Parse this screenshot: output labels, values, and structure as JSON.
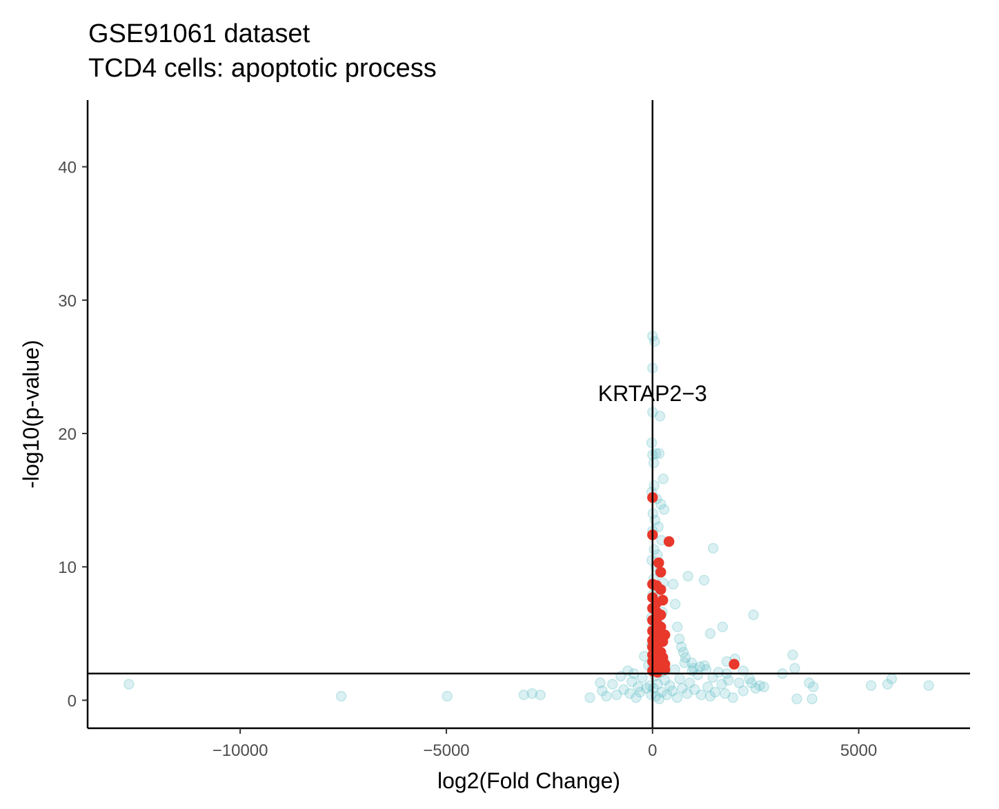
{
  "chart_data": {
    "type": "scatter",
    "title": "GSE91061 dataset",
    "subtitle": "TCD4 cells: apoptotic process",
    "xlabel": "log2(Fold Change)",
    "ylabel": "-log10(p-value)",
    "xlim": [
      -13700,
      7700
    ],
    "ylim": [
      -2.1,
      45
    ],
    "x_ticks": [
      -10000,
      -5000,
      0,
      5000
    ],
    "x_tick_labels": [
      "−10000",
      "−5000",
      "0",
      "5000"
    ],
    "y_ticks": [
      0,
      10,
      20,
      30,
      40
    ],
    "y_tick_labels": [
      "0",
      "10",
      "20",
      "30",
      "40"
    ],
    "reference_lines": {
      "vertical_x": 0,
      "horizontal_y": 2
    },
    "grid": false,
    "legend": "none",
    "colors": {
      "background_genes": "#5bbcc4",
      "highlighted_genes": "#e8382b",
      "axis": "#000000"
    },
    "annotations": [
      {
        "text": "KRTAP2−3",
        "x": 0,
        "y": 23
      }
    ],
    "series": [
      {
        "role": "background",
        "points": [
          [
            -12700,
            1.2
          ],
          [
            -7550,
            0.3
          ],
          [
            -4980,
            0.3
          ],
          [
            -3120,
            0.4
          ],
          [
            -2920,
            0.5
          ],
          [
            -2720,
            0.4
          ],
          [
            -1520,
            0.2
          ],
          [
            -1270,
            1.3
          ],
          [
            -1220,
            0.7
          ],
          [
            -1120,
            0.3
          ],
          [
            -970,
            1.2
          ],
          [
            -870,
            0.4
          ],
          [
            -770,
            1.8
          ],
          [
            -700,
            0.8
          ],
          [
            -600,
            2.2
          ],
          [
            -550,
            0.5
          ],
          [
            -500,
            1.4
          ],
          [
            -450,
            2.0
          ],
          [
            -400,
            0.2
          ],
          [
            -350,
            1.0
          ],
          [
            -300,
            0.6
          ],
          [
            -250,
            1.7
          ],
          [
            -200,
            3.3
          ],
          [
            -150,
            0.9
          ],
          [
            -100,
            2.6
          ],
          [
            -60,
            1.1
          ],
          [
            -30,
            0.4
          ],
          [
            -10,
            4.0
          ],
          [
            0,
            27.3
          ],
          [
            50,
            26.9
          ],
          [
            0,
            24.9
          ],
          [
            0,
            21.6
          ],
          [
            180,
            21.3
          ],
          [
            -20,
            19.3
          ],
          [
            0,
            18.4
          ],
          [
            80,
            18.5
          ],
          [
            160,
            18.5
          ],
          [
            30,
            17.8
          ],
          [
            260,
            16.6
          ],
          [
            40,
            16.1
          ],
          [
            -20,
            15.6
          ],
          [
            100,
            15.1
          ],
          [
            200,
            14.7
          ],
          [
            10,
            14.0
          ],
          [
            280,
            14.3
          ],
          [
            60,
            13.5
          ],
          [
            140,
            13.0
          ],
          [
            0,
            12.7
          ],
          [
            220,
            12.0
          ],
          [
            40,
            11.3
          ],
          [
            120,
            10.9
          ],
          [
            -20,
            10.5
          ],
          [
            80,
            10.0
          ],
          [
            180,
            9.6
          ],
          [
            30,
            9.1
          ],
          [
            260,
            8.8
          ],
          [
            100,
            8.4
          ],
          [
            0,
            7.9
          ],
          [
            160,
            7.5
          ],
          [
            50,
            7.0
          ],
          [
            240,
            6.6
          ],
          [
            -30,
            6.2
          ],
          [
            130,
            5.8
          ],
          [
            20,
            5.4
          ],
          [
            210,
            5.0
          ],
          [
            70,
            4.6
          ],
          [
            -20,
            4.2
          ],
          [
            150,
            3.8
          ],
          [
            40,
            3.4
          ],
          [
            260,
            3.1
          ],
          [
            90,
            2.7
          ],
          [
            0,
            2.4
          ],
          [
            190,
            2.1
          ],
          [
            60,
            1.8
          ],
          [
            300,
            1.5
          ],
          [
            120,
            1.2
          ],
          [
            20,
            0.9
          ],
          [
            220,
            0.6
          ],
          [
            80,
            0.3
          ],
          [
            160,
            0.1
          ],
          [
            350,
            0.4
          ],
          [
            420,
            1.1
          ],
          [
            480,
            0.7
          ],
          [
            540,
            2.3
          ],
          [
            600,
            0.2
          ],
          [
            660,
            1.6
          ],
          [
            720,
            0.9
          ],
          [
            780,
            2.8
          ],
          [
            840,
            0.5
          ],
          [
            900,
            1.3
          ],
          [
            960,
            2.2
          ],
          [
            1020,
            0.8
          ],
          [
            1100,
            1.9
          ],
          [
            1180,
            0.4
          ],
          [
            1260,
            2.6
          ],
          [
            1340,
            1.0
          ],
          [
            1400,
            0.3
          ],
          [
            1460,
            1.7
          ],
          [
            1520,
            0.6
          ],
          [
            1600,
            2.1
          ],
          [
            1680,
            1.2
          ],
          [
            1760,
            0.5
          ],
          [
            1840,
            1.5
          ],
          [
            1950,
            0.2
          ],
          [
            2100,
            1.3
          ],
          [
            2200,
            0.7
          ],
          [
            2350,
            1.6
          ],
          [
            2500,
            0.9
          ],
          [
            2600,
            1.1
          ],
          [
            500,
            8.7
          ],
          [
            550,
            7.2
          ],
          [
            600,
            5.5
          ],
          [
            650,
            4.6
          ],
          [
            700,
            4.0
          ],
          [
            750,
            3.6
          ],
          [
            800,
            3.2
          ],
          [
            860,
            9.3
          ],
          [
            950,
            2.8
          ],
          [
            1000,
            2.4
          ],
          [
            1150,
            2.5
          ],
          [
            1300,
            2.3
          ],
          [
            1250,
            9.0
          ],
          [
            1470,
            11.4
          ],
          [
            1400,
            5.0
          ],
          [
            1700,
            5.5
          ],
          [
            1800,
            2.9
          ],
          [
            1800,
            2.0
          ],
          [
            2000,
            3.1
          ],
          [
            2200,
            2.2
          ],
          [
            2450,
            6.4
          ],
          [
            2400,
            1.3
          ],
          [
            2700,
            1.0
          ],
          [
            3150,
            2.0
          ],
          [
            3400,
            3.4
          ],
          [
            3450,
            2.4
          ],
          [
            3500,
            0.1
          ],
          [
            3800,
            1.3
          ],
          [
            3900,
            1.0
          ],
          [
            3870,
            0.1
          ],
          [
            5300,
            1.1
          ],
          [
            5700,
            1.2
          ],
          [
            5800,
            1.6
          ],
          [
            6700,
            1.1
          ]
        ]
      },
      {
        "role": "highlighted",
        "points": [
          [
            0,
            15.2
          ],
          [
            0,
            12.4
          ],
          [
            400,
            11.9
          ],
          [
            150,
            10.3
          ],
          [
            200,
            9.6
          ],
          [
            100,
            8.6
          ],
          [
            0,
            8.7
          ],
          [
            200,
            8.3
          ],
          [
            0,
            7.7
          ],
          [
            100,
            7.3
          ],
          [
            250,
            7.5
          ],
          [
            0,
            6.9
          ],
          [
            100,
            6.6
          ],
          [
            200,
            6.4
          ],
          [
            0,
            6.0
          ],
          [
            100,
            5.8
          ],
          [
            200,
            5.5
          ],
          [
            0,
            5.2
          ],
          [
            100,
            4.9
          ],
          [
            300,
            4.9
          ],
          [
            0,
            4.5
          ],
          [
            150,
            4.3
          ],
          [
            250,
            4.4
          ],
          [
            0,
            4.0
          ],
          [
            100,
            3.8
          ],
          [
            200,
            3.6
          ],
          [
            0,
            3.4
          ],
          [
            100,
            3.2
          ],
          [
            250,
            3.2
          ],
          [
            0,
            2.9
          ],
          [
            150,
            2.8
          ],
          [
            300,
            2.7
          ],
          [
            50,
            2.5
          ],
          [
            200,
            2.4
          ],
          [
            0,
            2.2
          ],
          [
            120,
            2.1
          ],
          [
            300,
            2.3
          ],
          [
            1980,
            2.7
          ]
        ]
      }
    ]
  }
}
